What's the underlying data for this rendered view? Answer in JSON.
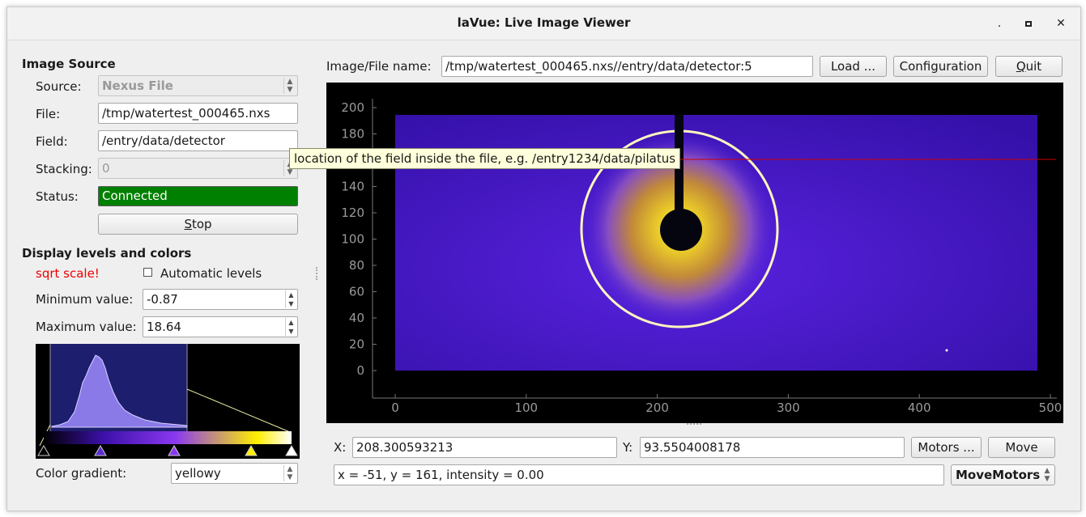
{
  "window": {
    "title": "laVue: Live Image Viewer"
  },
  "image_source": {
    "heading": "Image Source",
    "source_label": "Source:",
    "source_value": "Nexus File",
    "file_label": "File:",
    "file_value": "/tmp/watertest_000465.nxs",
    "field_label": "Field:",
    "field_value": "/entry/data/detector",
    "stacking_label": "Stacking:",
    "stacking_value": "0",
    "status_label": "Status:",
    "status_value": "Connected",
    "stop_label": "Stop"
  },
  "tooltip": {
    "text": "location of the field inside the file, e.g. /entry1234/data/pilatus"
  },
  "display": {
    "heading": "Display levels and colors",
    "sqrt_text": "sqrt scale!",
    "auto_levels_label": "Automatic levels",
    "auto_levels_checked": false,
    "min_label": "Minimum value:",
    "min_value": "-0.87",
    "max_label": "Maximum value:",
    "max_value": "18.64",
    "gradient_label": "Color gradient:",
    "gradient_value": "yellowy"
  },
  "toolbar": {
    "file_name_label": "Image/File name:",
    "file_name_value": "/tmp/watertest_000465.nxs//entry/data/detector:5",
    "load_label": "Load ...",
    "config_label": "Configuration",
    "quit_label": "Quit"
  },
  "plot": {
    "x_ticks": [
      "0",
      "100",
      "200",
      "300",
      "400",
      "500"
    ],
    "y_ticks": [
      "0",
      "20",
      "40",
      "60",
      "80",
      "100",
      "120",
      "140",
      "160",
      "180",
      "200"
    ],
    "x_range": [
      -20,
      500
    ],
    "y_range": [
      -22,
      208
    ],
    "crosshair_y": 161
  },
  "coords": {
    "x_label": "X:",
    "x_value": "208.300593213",
    "y_label": "Y:",
    "y_value": "93.5504008178",
    "motors_label": "Motors ...",
    "move_label": "Move",
    "info_text": "x = -51, y = 161, intensity = 0.00",
    "move_motors_value": "MoveMotors"
  },
  "colors": {
    "status_green": "#008000",
    "sqrt_red": "#ee0000",
    "crosshair_red": "#cc0000"
  }
}
